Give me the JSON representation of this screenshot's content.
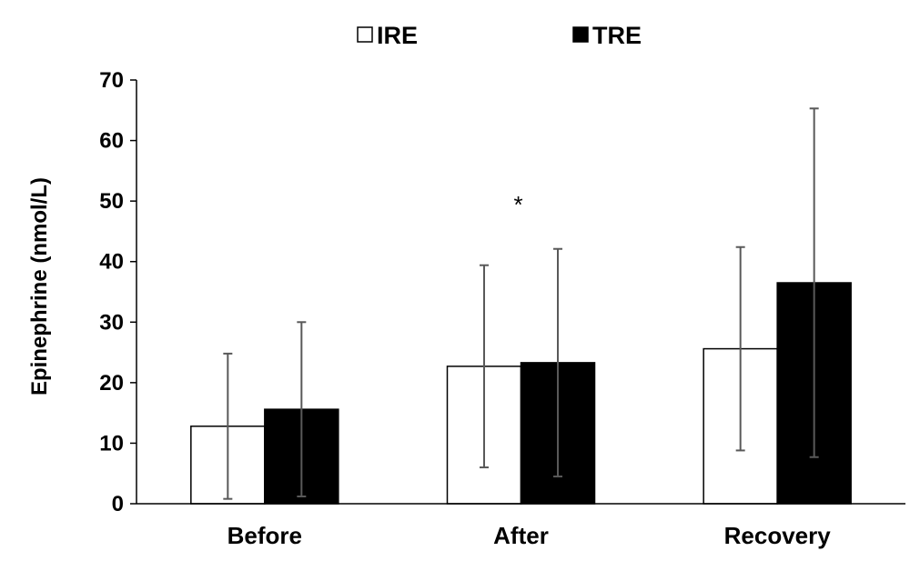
{
  "chart_data": {
    "type": "bar",
    "ylabel": "Epinephrine (nmol/L)",
    "ylim": [
      0,
      70
    ],
    "yticks": [
      0,
      10,
      20,
      30,
      40,
      50,
      60,
      70
    ],
    "categories": [
      "Before",
      "After",
      "Recovery"
    ],
    "series": [
      {
        "name": "IRE",
        "values": [
          12.8,
          22.7,
          25.6
        ],
        "error": [
          12.0,
          16.7,
          16.8
        ],
        "fill": "#ffffff",
        "stroke": "#000000"
      },
      {
        "name": "TRE",
        "values": [
          15.6,
          23.3,
          36.5
        ],
        "error": [
          14.4,
          18.8,
          28.8
        ],
        "fill": "#000000",
        "stroke": "#000000"
      }
    ],
    "legend": "top-center",
    "grid": false,
    "annotations": [
      {
        "text": "*",
        "category": "After",
        "y": 50
      }
    ],
    "colors": {
      "error_bar": "#595959",
      "axis": "#000000"
    }
  }
}
